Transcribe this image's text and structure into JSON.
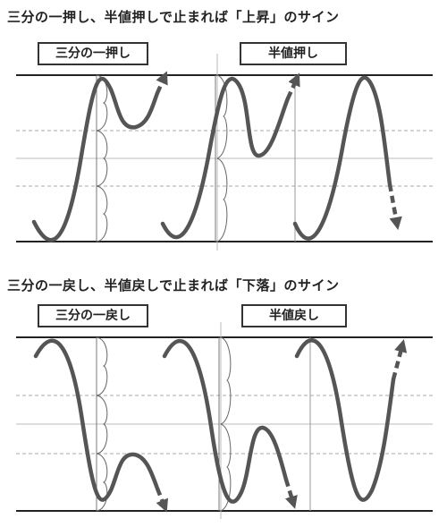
{
  "top_section": {
    "heading": "三分の一押し、半値押しで止まれば「上昇」のサイン",
    "label_left": "三分の一押し",
    "label_right": "半値押し"
  },
  "bottom_section": {
    "heading": "三分の一戻し、半値戻しで止まれば「下落」のサイン",
    "label_left": "三分の一戻し",
    "label_right": "半値戻し"
  },
  "colors": {
    "curve": "#555555",
    "frame": "#222222",
    "guide_dashed": "#aaaaaa",
    "divider": "#bbbbbb"
  }
}
